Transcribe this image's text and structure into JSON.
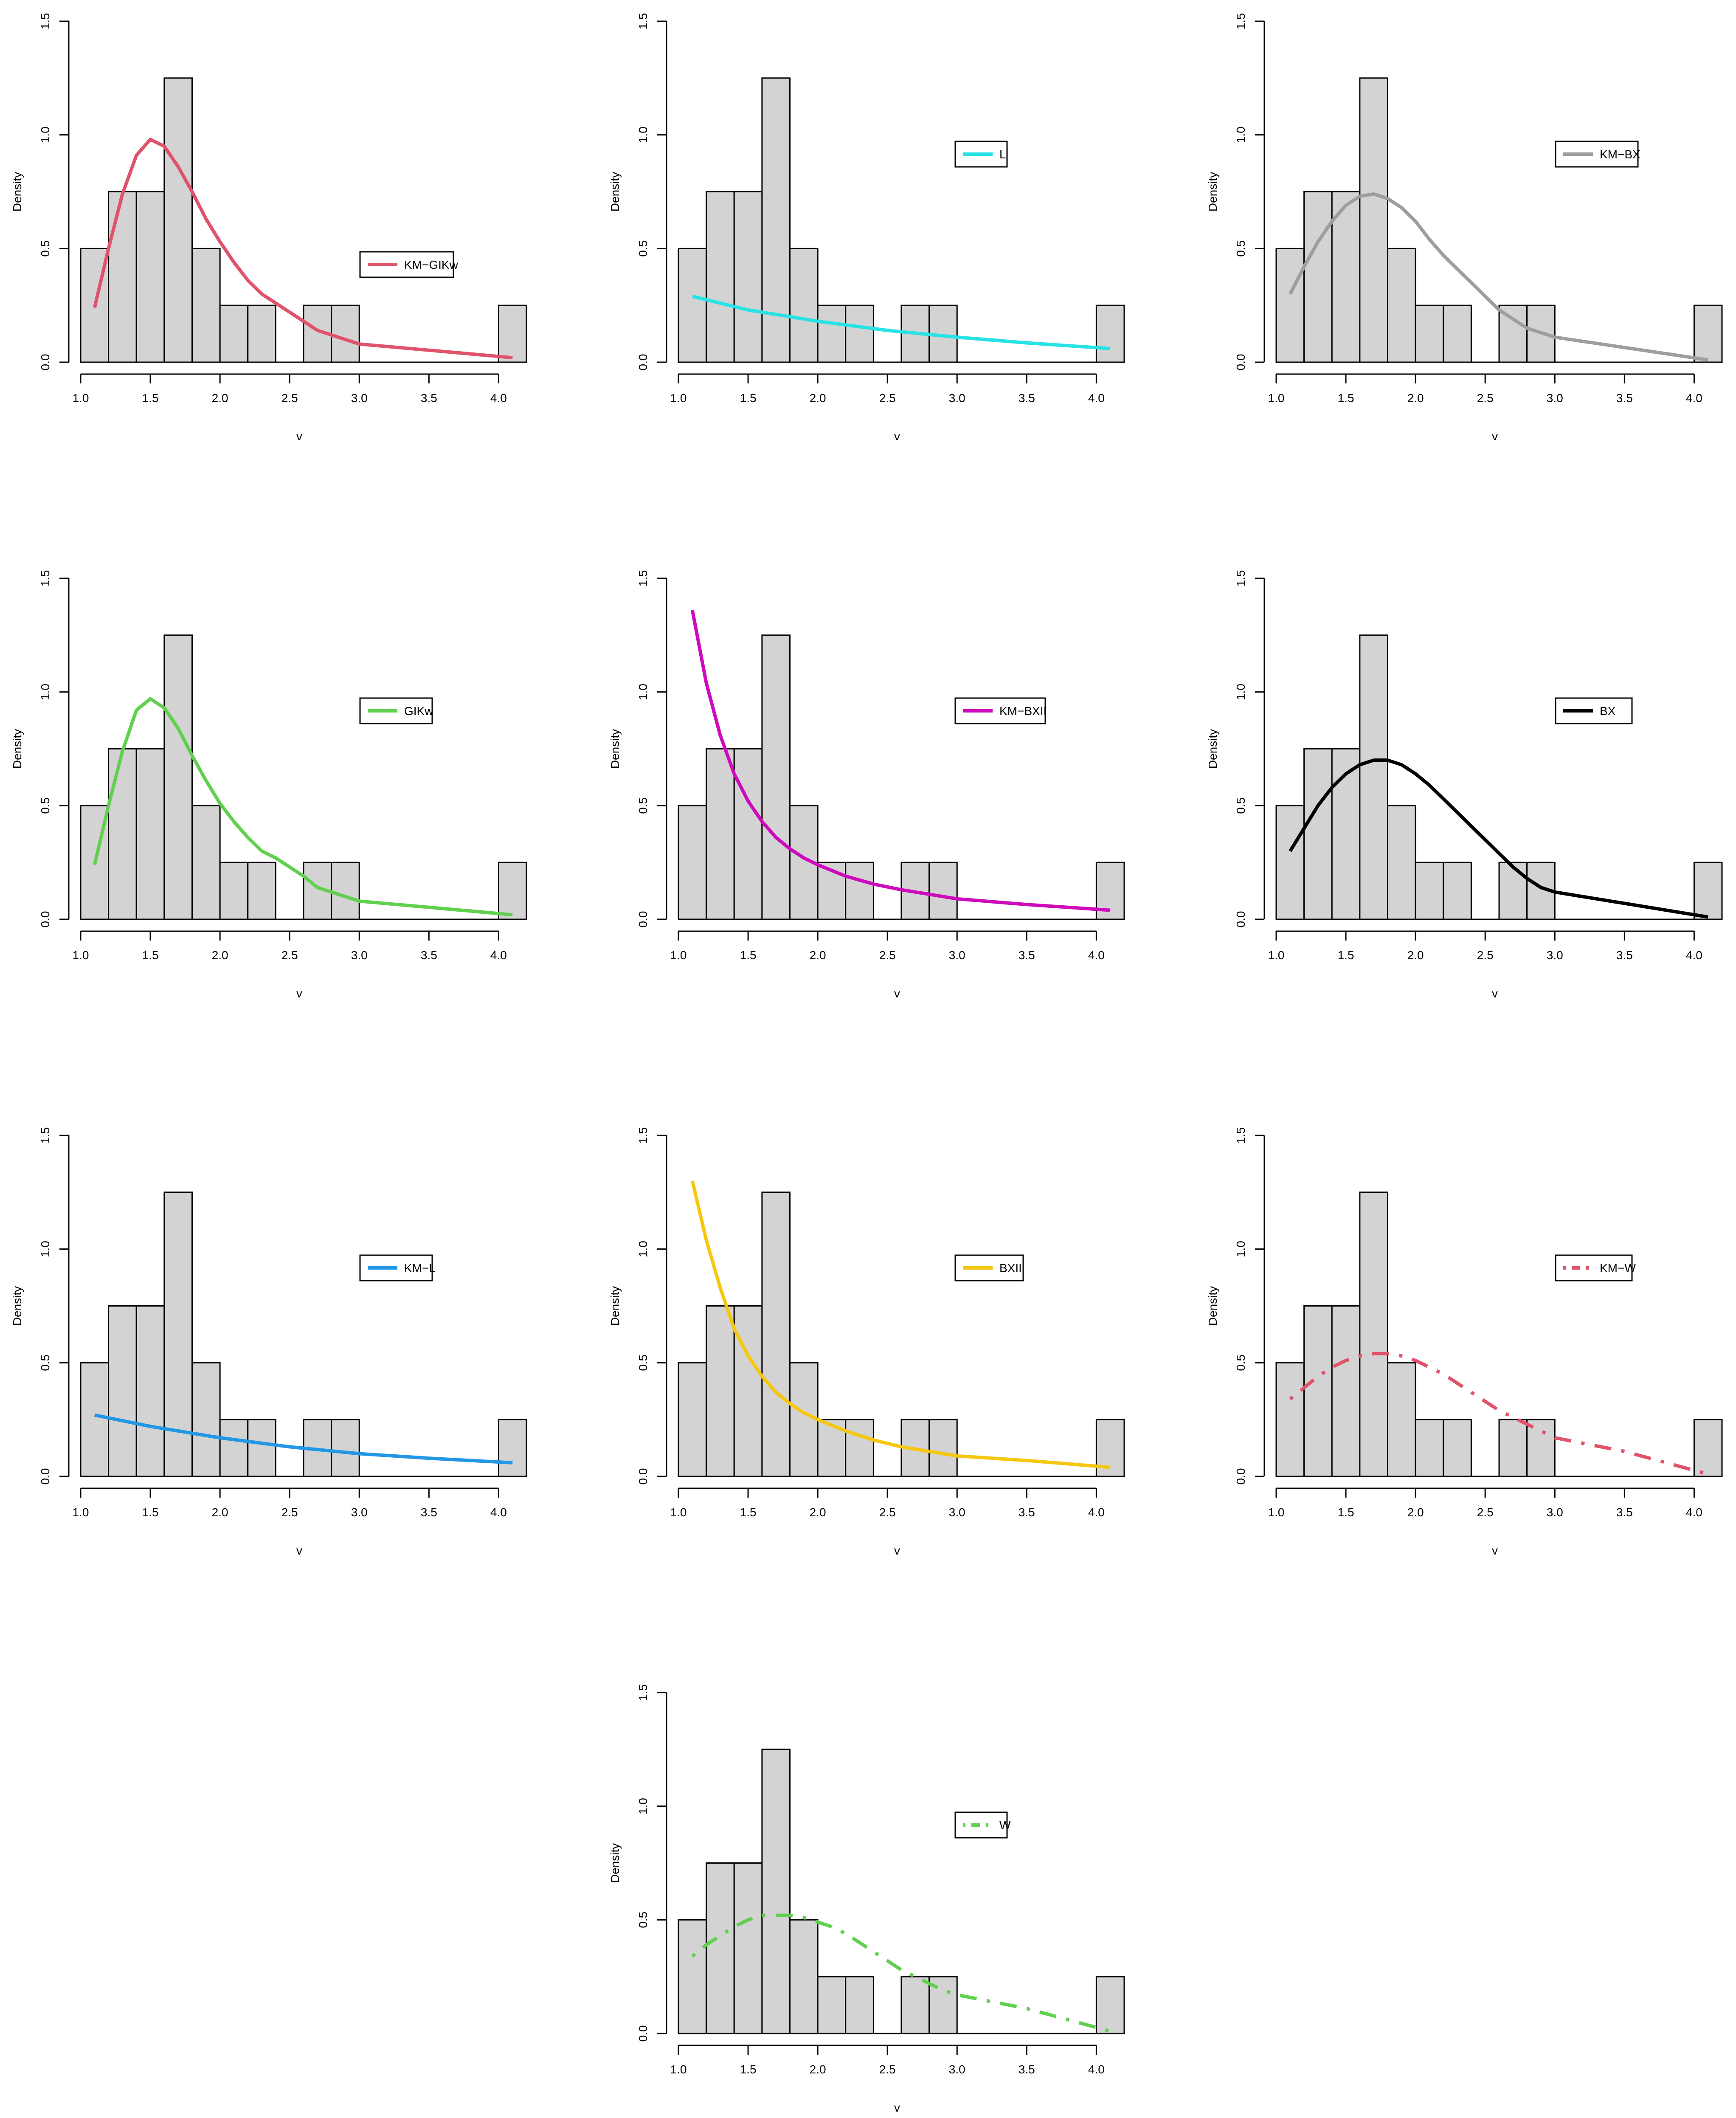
{
  "chart_data": [
    {
      "type": "histogram+line",
      "xlabel": "v",
      "ylabel": "Density",
      "xlim": [
        1.0,
        4.2
      ],
      "ylim": [
        0,
        1.5
      ],
      "xticks": [
        "1.0",
        "1.5",
        "2.0",
        "2.5",
        "3.0",
        "3.5",
        "4.0"
      ],
      "yticks": [
        "0.0",
        "0.5",
        "1.0",
        "1.5"
      ],
      "bins": [
        1.0,
        1.2,
        1.4,
        1.6,
        1.8,
        2.0,
        2.2,
        2.4,
        2.6,
        2.8,
        3.0,
        3.2,
        3.4,
        3.6,
        3.8,
        4.0,
        4.2
      ],
      "densities": [
        0.5,
        0.75,
        0.75,
        1.25,
        0.5,
        0.25,
        0.25,
        0,
        0.25,
        0.25,
        0,
        0,
        0,
        0,
        0,
        0.25
      ],
      "series": [
        {
          "name": "KM−GIKw",
          "color": "#DF536B",
          "dash": "solid",
          "x": [
            1.1,
            1.2,
            1.3,
            1.4,
            1.5,
            1.6,
            1.7,
            1.8,
            1.9,
            2.0,
            2.1,
            2.2,
            2.3,
            2.4,
            2.5,
            2.6,
            2.7,
            2.8,
            2.9,
            3.0,
            4.1
          ],
          "y": [
            0.24,
            0.5,
            0.74,
            0.91,
            0.98,
            0.95,
            0.86,
            0.75,
            0.63,
            0.53,
            0.44,
            0.36,
            0.3,
            0.26,
            0.22,
            0.18,
            0.14,
            0.12,
            0.1,
            0.08,
            0.02
          ]
        }
      ],
      "legend": "center-right"
    },
    {
      "type": "histogram+line",
      "xlabel": "v",
      "ylabel": "Density",
      "xlim": [
        1.0,
        4.2
      ],
      "ylim": [
        0,
        1.5
      ],
      "xticks": [
        "1.0",
        "1.5",
        "2.0",
        "2.5",
        "3.0",
        "3.5",
        "4.0"
      ],
      "yticks": [
        "0.0",
        "0.5",
        "1.0",
        "1.5"
      ],
      "bins": [
        1.0,
        1.2,
        1.4,
        1.6,
        1.8,
        2.0,
        2.2,
        2.4,
        2.6,
        2.8,
        3.0,
        3.2,
        3.4,
        3.6,
        3.8,
        4.0,
        4.2
      ],
      "densities": [
        0.5,
        0.75,
        0.75,
        1.25,
        0.5,
        0.25,
        0.25,
        0,
        0.25,
        0.25,
        0,
        0,
        0,
        0,
        0,
        0.25
      ],
      "series": [
        {
          "name": "L",
          "color": "#28E2E5",
          "dash": "solid",
          "x": [
            1.1,
            1.5,
            2.0,
            2.5,
            3.0,
            3.5,
            4.1
          ],
          "y": [
            0.29,
            0.23,
            0.18,
            0.14,
            0.11,
            0.085,
            0.06
          ]
        }
      ],
      "legend": "upper-center-right"
    },
    {
      "type": "histogram+line",
      "xlabel": "v",
      "ylabel": "Density",
      "xlim": [
        1.0,
        4.2
      ],
      "ylim": [
        0,
        1.5
      ],
      "xticks": [
        "1.0",
        "1.5",
        "2.0",
        "2.5",
        "3.0",
        "3.5",
        "4.0"
      ],
      "yticks": [
        "0.0",
        "0.5",
        "1.0",
        "1.5"
      ],
      "bins": [
        1.0,
        1.2,
        1.4,
        1.6,
        1.8,
        2.0,
        2.2,
        2.4,
        2.6,
        2.8,
        3.0,
        3.2,
        3.4,
        3.6,
        3.8,
        4.0,
        4.2
      ],
      "densities": [
        0.5,
        0.75,
        0.75,
        1.25,
        0.5,
        0.25,
        0.25,
        0,
        0.25,
        0.25,
        0,
        0,
        0,
        0,
        0,
        0.25
      ],
      "series": [
        {
          "name": "KM−BX",
          "color": "#9E9E9E",
          "dash": "solid",
          "x": [
            1.1,
            1.2,
            1.3,
            1.4,
            1.5,
            1.6,
            1.7,
            1.8,
            1.9,
            2.0,
            2.1,
            2.2,
            2.3,
            2.4,
            2.5,
            2.6,
            2.7,
            2.8,
            2.9,
            3.0,
            4.1
          ],
          "y": [
            0.3,
            0.42,
            0.53,
            0.62,
            0.69,
            0.73,
            0.74,
            0.72,
            0.68,
            0.62,
            0.54,
            0.47,
            0.41,
            0.35,
            0.29,
            0.23,
            0.19,
            0.15,
            0.13,
            0.11,
            0.01
          ]
        }
      ],
      "legend": "upper-right"
    },
    {
      "type": "histogram+line",
      "xlabel": "v",
      "ylabel": "Density",
      "xlim": [
        1.0,
        4.2
      ],
      "ylim": [
        0,
        1.5
      ],
      "xticks": [
        "1.0",
        "1.5",
        "2.0",
        "2.5",
        "3.0",
        "3.5",
        "4.0"
      ],
      "yticks": [
        "0.0",
        "0.5",
        "1.0",
        "1.5"
      ],
      "bins": [
        1.0,
        1.2,
        1.4,
        1.6,
        1.8,
        2.0,
        2.2,
        2.4,
        2.6,
        2.8,
        3.0,
        3.2,
        3.4,
        3.6,
        3.8,
        4.0,
        4.2
      ],
      "densities": [
        0.5,
        0.75,
        0.75,
        1.25,
        0.5,
        0.25,
        0.25,
        0,
        0.25,
        0.25,
        0,
        0,
        0,
        0,
        0,
        0.25
      ],
      "series": [
        {
          "name": "GIKw",
          "color": "#61D04F",
          "dash": "solid",
          "x": [
            1.1,
            1.2,
            1.3,
            1.4,
            1.5,
            1.6,
            1.7,
            1.8,
            1.9,
            2.0,
            2.1,
            2.2,
            2.3,
            2.4,
            2.5,
            2.6,
            2.7,
            2.8,
            2.9,
            3.0,
            4.1
          ],
          "y": [
            0.24,
            0.5,
            0.74,
            0.92,
            0.97,
            0.93,
            0.84,
            0.72,
            0.61,
            0.51,
            0.43,
            0.36,
            0.3,
            0.27,
            0.23,
            0.19,
            0.14,
            0.12,
            0.1,
            0.08,
            0.02
          ]
        }
      ],
      "legend": "center-right"
    },
    {
      "type": "histogram+line",
      "xlabel": "v",
      "ylabel": "Density",
      "xlim": [
        1.0,
        4.2
      ],
      "ylim": [
        0,
        1.5
      ],
      "xticks": [
        "1.0",
        "1.5",
        "2.0",
        "2.5",
        "3.0",
        "3.5",
        "4.0"
      ],
      "yticks": [
        "0.0",
        "0.5",
        "1.0",
        "1.5"
      ],
      "bins": [
        1.0,
        1.2,
        1.4,
        1.6,
        1.8,
        2.0,
        2.2,
        2.4,
        2.6,
        2.8,
        3.0,
        3.2,
        3.4,
        3.6,
        3.8,
        4.0,
        4.2
      ],
      "densities": [
        0.5,
        0.75,
        0.75,
        1.25,
        0.5,
        0.25,
        0.25,
        0,
        0.25,
        0.25,
        0,
        0,
        0,
        0,
        0,
        0.25
      ],
      "series": [
        {
          "name": "KM−BXII",
          "color": "#CD0BBC",
          "dash": "solid",
          "x": [
            1.1,
            1.2,
            1.3,
            1.4,
            1.5,
            1.6,
            1.7,
            1.8,
            1.9,
            2.0,
            2.2,
            2.4,
            2.6,
            2.8,
            3.0,
            3.5,
            4.1
          ],
          "y": [
            1.36,
            1.04,
            0.81,
            0.64,
            0.52,
            0.43,
            0.36,
            0.31,
            0.27,
            0.24,
            0.19,
            0.155,
            0.13,
            0.11,
            0.09,
            0.065,
            0.04
          ]
        }
      ],
      "legend": "center-right"
    },
    {
      "type": "histogram+line",
      "xlabel": "v",
      "ylabel": "Density",
      "xlim": [
        1.0,
        4.2
      ],
      "ylim": [
        0,
        1.5
      ],
      "xticks": [
        "1.0",
        "1.5",
        "2.0",
        "2.5",
        "3.0",
        "3.5",
        "4.0"
      ],
      "yticks": [
        "0.0",
        "0.5",
        "1.0",
        "1.5"
      ],
      "bins": [
        1.0,
        1.2,
        1.4,
        1.6,
        1.8,
        2.0,
        2.2,
        2.4,
        2.6,
        2.8,
        3.0,
        3.2,
        3.4,
        3.6,
        3.8,
        4.0,
        4.2
      ],
      "densities": [
        0.5,
        0.75,
        0.75,
        1.25,
        0.5,
        0.25,
        0.25,
        0,
        0.25,
        0.25,
        0,
        0,
        0,
        0,
        0,
        0.25
      ],
      "series": [
        {
          "name": "BX",
          "color": "#000000",
          "dash": "solid",
          "x": [
            1.1,
            1.2,
            1.3,
            1.4,
            1.5,
            1.6,
            1.7,
            1.8,
            1.9,
            2.0,
            2.1,
            2.2,
            2.3,
            2.4,
            2.5,
            2.6,
            2.7,
            2.8,
            2.9,
            3.0,
            4.1
          ],
          "y": [
            0.3,
            0.4,
            0.5,
            0.58,
            0.64,
            0.68,
            0.7,
            0.7,
            0.68,
            0.64,
            0.59,
            0.53,
            0.47,
            0.41,
            0.35,
            0.29,
            0.23,
            0.18,
            0.14,
            0.12,
            0.01
          ]
        }
      ],
      "legend": "center-right"
    },
    {
      "type": "histogram+line",
      "xlabel": "v",
      "ylabel": "Density",
      "xlim": [
        1.0,
        4.2
      ],
      "ylim": [
        0,
        1.5
      ],
      "xticks": [
        "1.0",
        "1.5",
        "2.0",
        "2.5",
        "3.0",
        "3.5",
        "4.0"
      ],
      "yticks": [
        "0.0",
        "0.5",
        "1.0",
        "1.5"
      ],
      "bins": [
        1.0,
        1.2,
        1.4,
        1.6,
        1.8,
        2.0,
        2.2,
        2.4,
        2.6,
        2.8,
        3.0,
        3.2,
        3.4,
        3.6,
        3.8,
        4.0,
        4.2
      ],
      "densities": [
        0.5,
        0.75,
        0.75,
        1.25,
        0.5,
        0.25,
        0.25,
        0,
        0.25,
        0.25,
        0,
        0,
        0,
        0,
        0,
        0.25
      ],
      "series": [
        {
          "name": "KM−L",
          "color": "#2297E6",
          "dash": "solid",
          "x": [
            1.1,
            1.5,
            2.0,
            2.5,
            3.0,
            3.5,
            4.1
          ],
          "y": [
            0.27,
            0.22,
            0.17,
            0.13,
            0.1,
            0.08,
            0.06
          ]
        }
      ],
      "legend": "center-right"
    },
    {
      "type": "histogram+line",
      "xlabel": "v",
      "ylabel": "Density",
      "xlim": [
        1.0,
        4.2
      ],
      "ylim": [
        0,
        1.5
      ],
      "xticks": [
        "1.0",
        "1.5",
        "2.0",
        "2.5",
        "3.0",
        "3.5",
        "4.0"
      ],
      "yticks": [
        "0.0",
        "0.5",
        "1.0",
        "1.5"
      ],
      "bins": [
        1.0,
        1.2,
        1.4,
        1.6,
        1.8,
        2.0,
        2.2,
        2.4,
        2.6,
        2.8,
        3.0,
        3.2,
        3.4,
        3.6,
        3.8,
        4.0,
        4.2
      ],
      "densities": [
        0.5,
        0.75,
        0.75,
        1.25,
        0.5,
        0.25,
        0.25,
        0,
        0.25,
        0.25,
        0,
        0,
        0,
        0,
        0,
        0.25
      ],
      "series": [
        {
          "name": "BXII",
          "color": "#F5C710",
          "dash": "solid",
          "x": [
            1.1,
            1.2,
            1.3,
            1.4,
            1.5,
            1.6,
            1.7,
            1.8,
            1.9,
            2.0,
            2.2,
            2.4,
            2.6,
            2.8,
            3.0,
            3.5,
            4.1
          ],
          "y": [
            1.3,
            1.04,
            0.83,
            0.65,
            0.53,
            0.44,
            0.37,
            0.32,
            0.28,
            0.25,
            0.2,
            0.16,
            0.13,
            0.11,
            0.09,
            0.07,
            0.04
          ]
        }
      ],
      "legend": "center-right"
    },
    {
      "type": "histogram+line",
      "xlabel": "v",
      "ylabel": "Density",
      "xlim": [
        1.0,
        4.2
      ],
      "ylim": [
        0,
        1.5
      ],
      "xticks": [
        "1.0",
        "1.5",
        "2.0",
        "2.5",
        "3.0",
        "3.5",
        "4.0"
      ],
      "yticks": [
        "0.0",
        "0.5",
        "1.0",
        "1.5"
      ],
      "bins": [
        1.0,
        1.2,
        1.4,
        1.6,
        1.8,
        2.0,
        2.2,
        2.4,
        2.6,
        2.8,
        3.0,
        3.2,
        3.4,
        3.6,
        3.8,
        4.0,
        4.2
      ],
      "densities": [
        0.5,
        0.75,
        0.75,
        1.25,
        0.5,
        0.25,
        0.25,
        0,
        0.25,
        0.25,
        0,
        0,
        0,
        0,
        0,
        0.25
      ],
      "series": [
        {
          "name": "KM−W",
          "color": "#DF536B",
          "dash": "dotdash",
          "x": [
            1.1,
            1.2,
            1.3,
            1.4,
            1.5,
            1.6,
            1.7,
            1.8,
            1.9,
            2.0,
            2.1,
            2.2,
            2.3,
            2.4,
            2.5,
            2.6,
            2.7,
            2.8,
            2.9,
            3.0,
            3.5,
            4.1
          ],
          "y": [
            0.34,
            0.39,
            0.44,
            0.48,
            0.51,
            0.53,
            0.54,
            0.54,
            0.53,
            0.51,
            0.48,
            0.45,
            0.41,
            0.37,
            0.33,
            0.29,
            0.26,
            0.23,
            0.2,
            0.17,
            0.11,
            0.01
          ]
        }
      ],
      "legend": "center-right"
    },
    {
      "type": "histogram+line",
      "xlabel": "v",
      "ylabel": "Density",
      "xlim": [
        1.0,
        4.2
      ],
      "ylim": [
        0,
        1.5
      ],
      "xticks": [
        "1.0",
        "1.5",
        "2.0",
        "2.5",
        "3.0",
        "3.5",
        "4.0"
      ],
      "yticks": [
        "0.0",
        "0.5",
        "1.0",
        "1.5"
      ],
      "bins": [
        1.0,
        1.2,
        1.4,
        1.6,
        1.8,
        2.0,
        2.2,
        2.4,
        2.6,
        2.8,
        3.0,
        3.2,
        3.4,
        3.6,
        3.8,
        4.0,
        4.2
      ],
      "densities": [
        0.5,
        0.75,
        0.75,
        1.25,
        0.5,
        0.25,
        0.25,
        0,
        0.25,
        0.25,
        0,
        0,
        0,
        0,
        0,
        0.25
      ],
      "series": [
        {
          "name": "W",
          "color": "#61D04F",
          "dash": "dotdash",
          "x": [
            1.1,
            1.2,
            1.3,
            1.4,
            1.5,
            1.6,
            1.7,
            1.8,
            1.9,
            2.0,
            2.1,
            2.2,
            2.3,
            2.4,
            2.5,
            2.6,
            2.7,
            2.8,
            2.9,
            3.0,
            3.5,
            4.1
          ],
          "y": [
            0.34,
            0.39,
            0.43,
            0.47,
            0.5,
            0.52,
            0.52,
            0.52,
            0.51,
            0.49,
            0.47,
            0.44,
            0.4,
            0.36,
            0.32,
            0.28,
            0.25,
            0.22,
            0.19,
            0.17,
            0.11,
            0.01
          ]
        }
      ],
      "legend": "center-right"
    }
  ],
  "style": {
    "bar_fill": "#D3D3D3",
    "bar_stroke": "#000000"
  }
}
